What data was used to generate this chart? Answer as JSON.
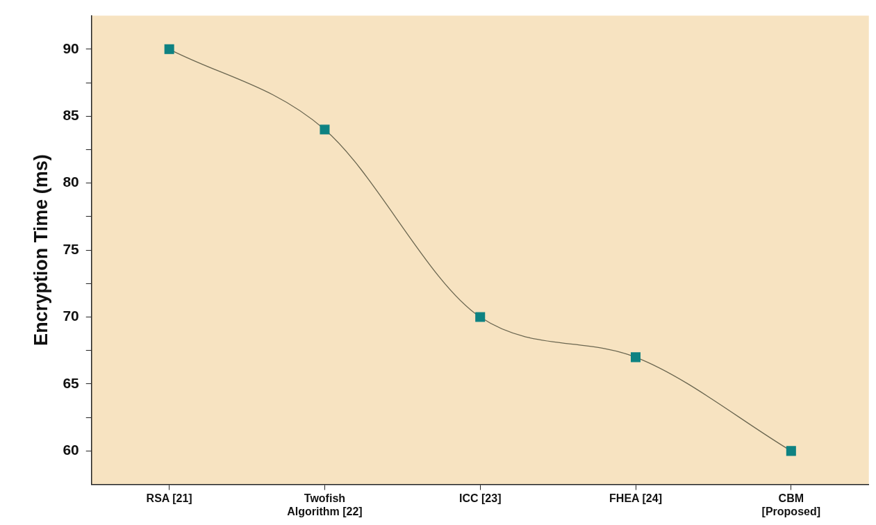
{
  "chart_data": {
    "type": "line",
    "ylabel": "Encryption Time (ms)",
    "categories": [
      "RSA [21]",
      "Twofish\nAlgorithm [22]",
      "ICC [23]",
      "FHEA [24]",
      "CBM\n[Proposed]"
    ],
    "series": [
      {
        "color": "#0e8282",
        "values": [
          90,
          84,
          70,
          67,
          60
        ]
      }
    ],
    "ylim": [
      57.5,
      92.5
    ],
    "yticks": [
      60,
      {
        "value": 62.5,
        "label": null
      },
      65,
      {
        "value": 67.5,
        "label": null
      },
      70,
      {
        "value": 72.5,
        "label": null
      },
      75,
      {
        "value": 77.5,
        "label": null
      },
      80,
      {
        "value": 82.5,
        "label": null
      },
      85,
      {
        "value": 87.5,
        "label": null
      },
      90
    ],
    "grid": false,
    "legend": false,
    "marker": "square",
    "line_style": "solid"
  }
}
